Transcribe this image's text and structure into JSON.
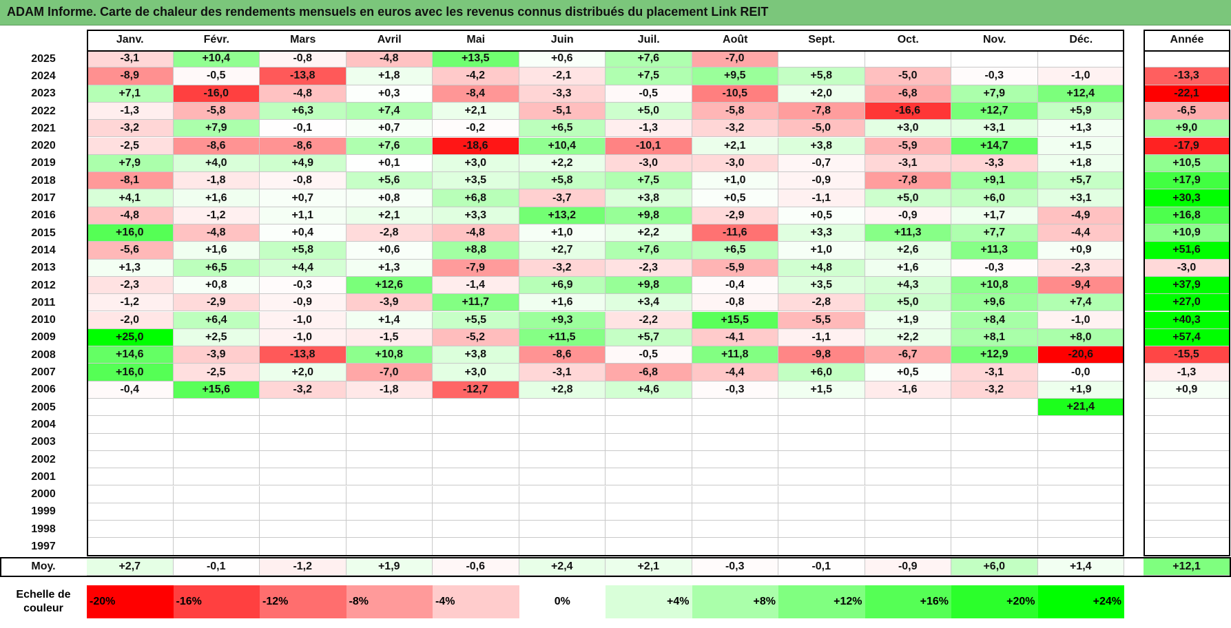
{
  "title": "ADAM Informe. Carte de chaleur des rendements mensuels en euros avec les revenus connus distribués du placement Link REIT",
  "chart_data": {
    "type": "heatmap",
    "months": [
      "Janv.",
      "Févr.",
      "Mars",
      "Avril",
      "Mai",
      "Juin",
      "Juil.",
      "Août",
      "Sept.",
      "Oct.",
      "Nov.",
      "Déc."
    ],
    "year_header": "Année",
    "avg_label": "Moy.",
    "rows": [
      {
        "year": "2025",
        "values": [
          "-3,1",
          "+10,4",
          "-0,8",
          "-4,8",
          "+13,5",
          "+0,6",
          "+7,6",
          "-7,0",
          "",
          "",
          "",
          ""
        ],
        "annual": ""
      },
      {
        "year": "2024",
        "values": [
          "-8,9",
          "-0,5",
          "-13,8",
          "+1,8",
          "-4,2",
          "-2,1",
          "+7,5",
          "+9,5",
          "+5,8",
          "-5,0",
          "-0,3",
          "-1,0"
        ],
        "annual": "-13,3"
      },
      {
        "year": "2023",
        "values": [
          "+7,1",
          "-16,0",
          "-4,8",
          "+0,3",
          "-8,4",
          "-3,3",
          "-0,5",
          "-10,5",
          "+2,0",
          "-6,8",
          "+7,9",
          "+12,4"
        ],
        "annual": "-22,1"
      },
      {
        "year": "2022",
        "values": [
          "-1,3",
          "-5,8",
          "+6,3",
          "+7,4",
          "+2,1",
          "-5,1",
          "+5,0",
          "-5,8",
          "-7,8",
          "-16,6",
          "+12,7",
          "+5,9"
        ],
        "annual": "-6,5"
      },
      {
        "year": "2021",
        "values": [
          "-3,2",
          "+7,9",
          "-0,1",
          "+0,7",
          "-0,2",
          "+6,5",
          "-1,3",
          "-3,2",
          "-5,0",
          "+3,0",
          "+3,1",
          "+1,3"
        ],
        "annual": "+9,0"
      },
      {
        "year": "2020",
        "values": [
          "-2,5",
          "-8,6",
          "-8,6",
          "+7,6",
          "-18,6",
          "+10,4",
          "-10,1",
          "+2,1",
          "+3,8",
          "-5,9",
          "+14,7",
          "+1,5"
        ],
        "annual": "-17,9"
      },
      {
        "year": "2019",
        "values": [
          "+7,9",
          "+4,0",
          "+4,9",
          "+0,1",
          "+3,0",
          "+2,2",
          "-3,0",
          "-3,0",
          "-0,7",
          "-3,1",
          "-3,3",
          "+1,8"
        ],
        "annual": "+10,5"
      },
      {
        "year": "2018",
        "values": [
          "-8,1",
          "-1,8",
          "-0,8",
          "+5,6",
          "+3,5",
          "+5,8",
          "+7,5",
          "+1,0",
          "-0,9",
          "-7,8",
          "+9,1",
          "+5,7"
        ],
        "annual": "+17,9"
      },
      {
        "year": "2017",
        "values": [
          "+4,1",
          "+1,6",
          "+0,7",
          "+0,8",
          "+6,8",
          "-3,7",
          "+3,8",
          "+0,5",
          "-1,1",
          "+5,0",
          "+6,0",
          "+3,1"
        ],
        "annual": "+30,3"
      },
      {
        "year": "2016",
        "values": [
          "-4,8",
          "-1,2",
          "+1,1",
          "+2,1",
          "+3,3",
          "+13,2",
          "+9,8",
          "-2,9",
          "+0,5",
          "-0,9",
          "+1,7",
          "-4,9"
        ],
        "annual": "+16,8"
      },
      {
        "year": "2015",
        "values": [
          "+16,0",
          "-4,8",
          "+0,4",
          "-2,8",
          "-4,8",
          "+1,0",
          "+2,2",
          "-11,6",
          "+3,3",
          "+11,3",
          "+7,7",
          "-4,4"
        ],
        "annual": "+10,9"
      },
      {
        "year": "2014",
        "values": [
          "-5,6",
          "+1,6",
          "+5,8",
          "+0,6",
          "+8,8",
          "+2,7",
          "+7,6",
          "+6,5",
          "+1,0",
          "+2,6",
          "+11,3",
          "+0,9"
        ],
        "annual": "+51,6"
      },
      {
        "year": "2013",
        "values": [
          "+1,3",
          "+6,5",
          "+4,4",
          "+1,3",
          "-7,9",
          "-3,2",
          "-2,3",
          "-5,9",
          "+4,8",
          "+1,6",
          "-0,3",
          "-2,3"
        ],
        "annual": "-3,0"
      },
      {
        "year": "2012",
        "values": [
          "-2,3",
          "+0,8",
          "-0,3",
          "+12,6",
          "-1,4",
          "+6,9",
          "+9,8",
          "-0,4",
          "+3,5",
          "+4,3",
          "+10,8",
          "-9,4"
        ],
        "annual": "+37,9"
      },
      {
        "year": "2011",
        "values": [
          "-1,2",
          "-2,9",
          "-0,9",
          "-3,9",
          "+11,7",
          "+1,6",
          "+3,4",
          "-0,8",
          "-2,8",
          "+5,0",
          "+9,6",
          "+7,4"
        ],
        "annual": "+27,0"
      },
      {
        "year": "2010",
        "values": [
          "-2,0",
          "+6,4",
          "-1,0",
          "+1,4",
          "+5,5",
          "+9,3",
          "-2,2",
          "+15,5",
          "-5,5",
          "+1,9",
          "+8,4",
          "-1,0"
        ],
        "annual": "+40,3"
      },
      {
        "year": "2009",
        "values": [
          "+25,0",
          "+2,5",
          "-1,0",
          "-1,5",
          "-5,2",
          "+11,5",
          "+5,7",
          "-4,1",
          "-1,1",
          "+2,2",
          "+8,1",
          "+8,0"
        ],
        "annual": "+57,4"
      },
      {
        "year": "2008",
        "values": [
          "+14,6",
          "-3,9",
          "-13,8",
          "+10,8",
          "+3,8",
          "-8,6",
          "-0,5",
          "+11,8",
          "-9,8",
          "-6,7",
          "+12,9",
          "-20,6"
        ],
        "annual": "-15,5"
      },
      {
        "year": "2007",
        "values": [
          "+16,0",
          "-2,5",
          "+2,0",
          "-7,0",
          "+3,0",
          "-3,1",
          "-6,8",
          "-4,4",
          "+6,0",
          "+0,5",
          "-3,1",
          "-0,0"
        ],
        "annual": "-1,3"
      },
      {
        "year": "2006",
        "values": [
          "-0,4",
          "+15,6",
          "-3,2",
          "-1,8",
          "-12,7",
          "+2,8",
          "+4,6",
          "-0,3",
          "+1,5",
          "-1,6",
          "-3,2",
          "+1,9"
        ],
        "annual": "+0,9"
      },
      {
        "year": "2005",
        "values": [
          "",
          "",
          "",
          "",
          "",
          "",
          "",
          "",
          "",
          "",
          "",
          "+21,4"
        ],
        "annual": ""
      },
      {
        "year": "2004",
        "values": [
          "",
          "",
          "",
          "",
          "",
          "",
          "",
          "",
          "",
          "",
          "",
          ""
        ],
        "annual": ""
      },
      {
        "year": "2003",
        "values": [
          "",
          "",
          "",
          "",
          "",
          "",
          "",
          "",
          "",
          "",
          "",
          ""
        ],
        "annual": ""
      },
      {
        "year": "2002",
        "values": [
          "",
          "",
          "",
          "",
          "",
          "",
          "",
          "",
          "",
          "",
          "",
          ""
        ],
        "annual": ""
      },
      {
        "year": "2001",
        "values": [
          "",
          "",
          "",
          "",
          "",
          "",
          "",
          "",
          "",
          "",
          "",
          ""
        ],
        "annual": ""
      },
      {
        "year": "2000",
        "values": [
          "",
          "",
          "",
          "",
          "",
          "",
          "",
          "",
          "",
          "",
          "",
          ""
        ],
        "annual": ""
      },
      {
        "year": "1999",
        "values": [
          "",
          "",
          "",
          "",
          "",
          "",
          "",
          "",
          "",
          "",
          "",
          ""
        ],
        "annual": ""
      },
      {
        "year": "1998",
        "values": [
          "",
          "",
          "",
          "",
          "",
          "",
          "",
          "",
          "",
          "",
          "",
          ""
        ],
        "annual": ""
      },
      {
        "year": "1997",
        "values": [
          "",
          "",
          "",
          "",
          "",
          "",
          "",
          "",
          "",
          "",
          "",
          ""
        ],
        "annual": ""
      }
    ],
    "averages": [
      "+2,7",
      "-0,1",
      "-1,2",
      "+1,9",
      "-0,6",
      "+2,4",
      "+2,1",
      "-0,3",
      "-0,1",
      "-0,9",
      "+6,0",
      "+1,4"
    ],
    "avg_annual": "+12,1",
    "scale_label_line1": "Echelle de",
    "scale_label_line2": "couleur",
    "scale": [
      {
        "label": "-20%",
        "value": -20,
        "color": "#ff0000"
      },
      {
        "label": "-16%",
        "value": -16,
        "color": "#ff4040"
      },
      {
        "label": "-12%",
        "value": -12,
        "color": "#ff6e6e"
      },
      {
        "label": "-8%",
        "value": -8,
        "color": "#ff9a9a"
      },
      {
        "label": "-4%",
        "value": -4,
        "color": "#ffcccc"
      },
      {
        "label": "0%",
        "value": 0,
        "color": "#ffffff"
      },
      {
        "label": "+4%",
        "value": 4,
        "color": "#d9ffd9"
      },
      {
        "label": "+8%",
        "value": 8,
        "color": "#aaffaa"
      },
      {
        "label": "+12%",
        "value": 12,
        "color": "#80ff80"
      },
      {
        "label": "+16%",
        "value": 16,
        "color": "#55ff55"
      },
      {
        "label": "+20%",
        "value": 20,
        "color": "#2bff2b"
      },
      {
        "label": "+24%",
        "value": 24,
        "color": "#00ff00"
      }
    ]
  }
}
